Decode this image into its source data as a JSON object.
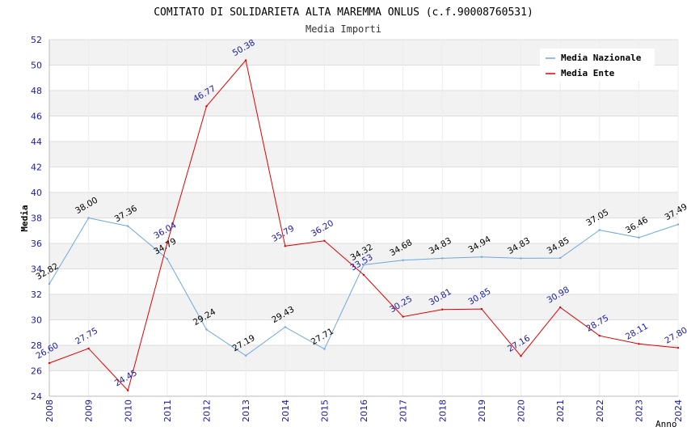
{
  "chart_data": {
    "type": "line",
    "title": "COMITATO DI SOLIDARIETA ALTA MAREMMA ONLUS (c.f.90008760531)",
    "subtitle": "Media Importi",
    "xlabel": "Anno",
    "ylabel": "Media",
    "ylim": [
      24,
      52
    ],
    "yticks": [
      "24",
      "26",
      "28",
      "30",
      "32",
      "34",
      "36",
      "38",
      "40",
      "42",
      "44",
      "46",
      "48",
      "50",
      "52"
    ],
    "grid": true,
    "legend_position": "top-right",
    "x": [
      "2008",
      "2009",
      "2010",
      "2011",
      "2012",
      "2013",
      "2014",
      "2015",
      "2016",
      "2017",
      "2018",
      "2019",
      "2020",
      "2021",
      "2022",
      "2023",
      "2024"
    ],
    "series": [
      {
        "name": "Media Nazionale",
        "color": "#6fa8dc",
        "values": [
          32.82,
          38.0,
          37.36,
          34.79,
          29.24,
          27.19,
          29.43,
          27.71,
          34.32,
          34.68,
          34.83,
          34.94,
          34.83,
          34.85,
          37.05,
          36.46,
          37.49
        ],
        "labels": [
          "32.82",
          "38.00",
          "37.36",
          "34.79",
          "29.24",
          "27.19",
          "29.43",
          "27.71",
          "34.32",
          "34.68",
          "34.83",
          "34.94",
          "34.83",
          "34.85",
          "37.05",
          "36.46",
          "37.49"
        ]
      },
      {
        "name": "Media Ente",
        "color": "#e00000",
        "values": [
          26.6,
          27.75,
          24.45,
          36.04,
          46.77,
          50.38,
          35.79,
          36.2,
          33.53,
          30.25,
          30.81,
          30.85,
          27.16,
          30.98,
          28.75,
          28.11,
          27.8
        ],
        "labels": [
          "26.60",
          "27.75",
          "24.45",
          "36.04",
          "46.77",
          "50.38",
          "35.79",
          "36.20",
          "33.53",
          "30.25",
          "30.81",
          "30.85",
          "27.16",
          "30.98",
          "28.75",
          "28.11",
          "27.80"
        ]
      }
    ]
  }
}
